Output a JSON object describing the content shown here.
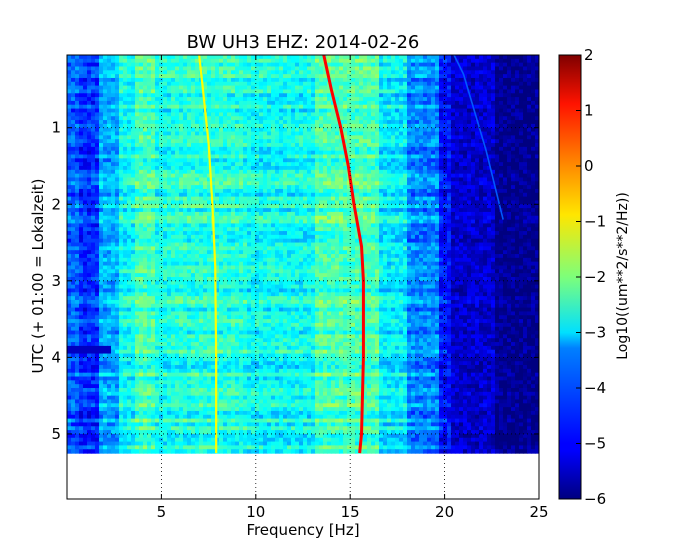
{
  "chart_data": {
    "type": "heatmap",
    "title": "BW UH3 EHZ: 2014-02-26",
    "xlabel": "Frequency [Hz]",
    "ylabel": "UTC (+ 01:00 = Lokalzeit)",
    "xlim": [
      0,
      25
    ],
    "ylim": [
      5.85,
      0.05
    ],
    "data_time_extent": [
      0.05,
      5.25
    ],
    "x_ticks": [
      5,
      10,
      15,
      20,
      25
    ],
    "y_ticks": [
      1,
      2,
      3,
      4,
      5
    ],
    "grid": true,
    "colormap": "jet",
    "colorbar": {
      "label": "Log10((um**2/s**2/Hz))",
      "range": [
        -6,
        2
      ],
      "ticks": [
        -6,
        -5,
        -4,
        -3,
        -2,
        -1,
        0,
        1,
        2
      ]
    },
    "spectral_lines": [
      {
        "description": "strong line",
        "level": 1.0,
        "points": [
          [
            13.6,
            0.05
          ],
          [
            14.0,
            0.5
          ],
          [
            14.5,
            1.0
          ],
          [
            14.9,
            1.5
          ],
          [
            15.2,
            2.0
          ],
          [
            15.6,
            2.55
          ],
          [
            15.7,
            3.0
          ],
          [
            15.7,
            4.0
          ],
          [
            15.6,
            5.0
          ],
          [
            15.5,
            5.25
          ]
        ]
      },
      {
        "description": "secondary line",
        "level": -1.0,
        "points": [
          [
            7.0,
            0.05
          ],
          [
            7.2,
            0.5
          ],
          [
            7.5,
            1.2
          ],
          [
            7.7,
            2.0
          ],
          [
            7.85,
            2.8
          ],
          [
            7.9,
            4.0
          ],
          [
            7.9,
            5.25
          ]
        ]
      },
      {
        "description": "faint drifting line",
        "level": -4.3,
        "points": [
          [
            20.5,
            0.05
          ],
          [
            21.0,
            0.3
          ],
          [
            21.6,
            0.8
          ],
          [
            22.2,
            1.3
          ],
          [
            22.7,
            1.8
          ],
          [
            23.1,
            2.2
          ]
        ]
      }
    ]
  }
}
